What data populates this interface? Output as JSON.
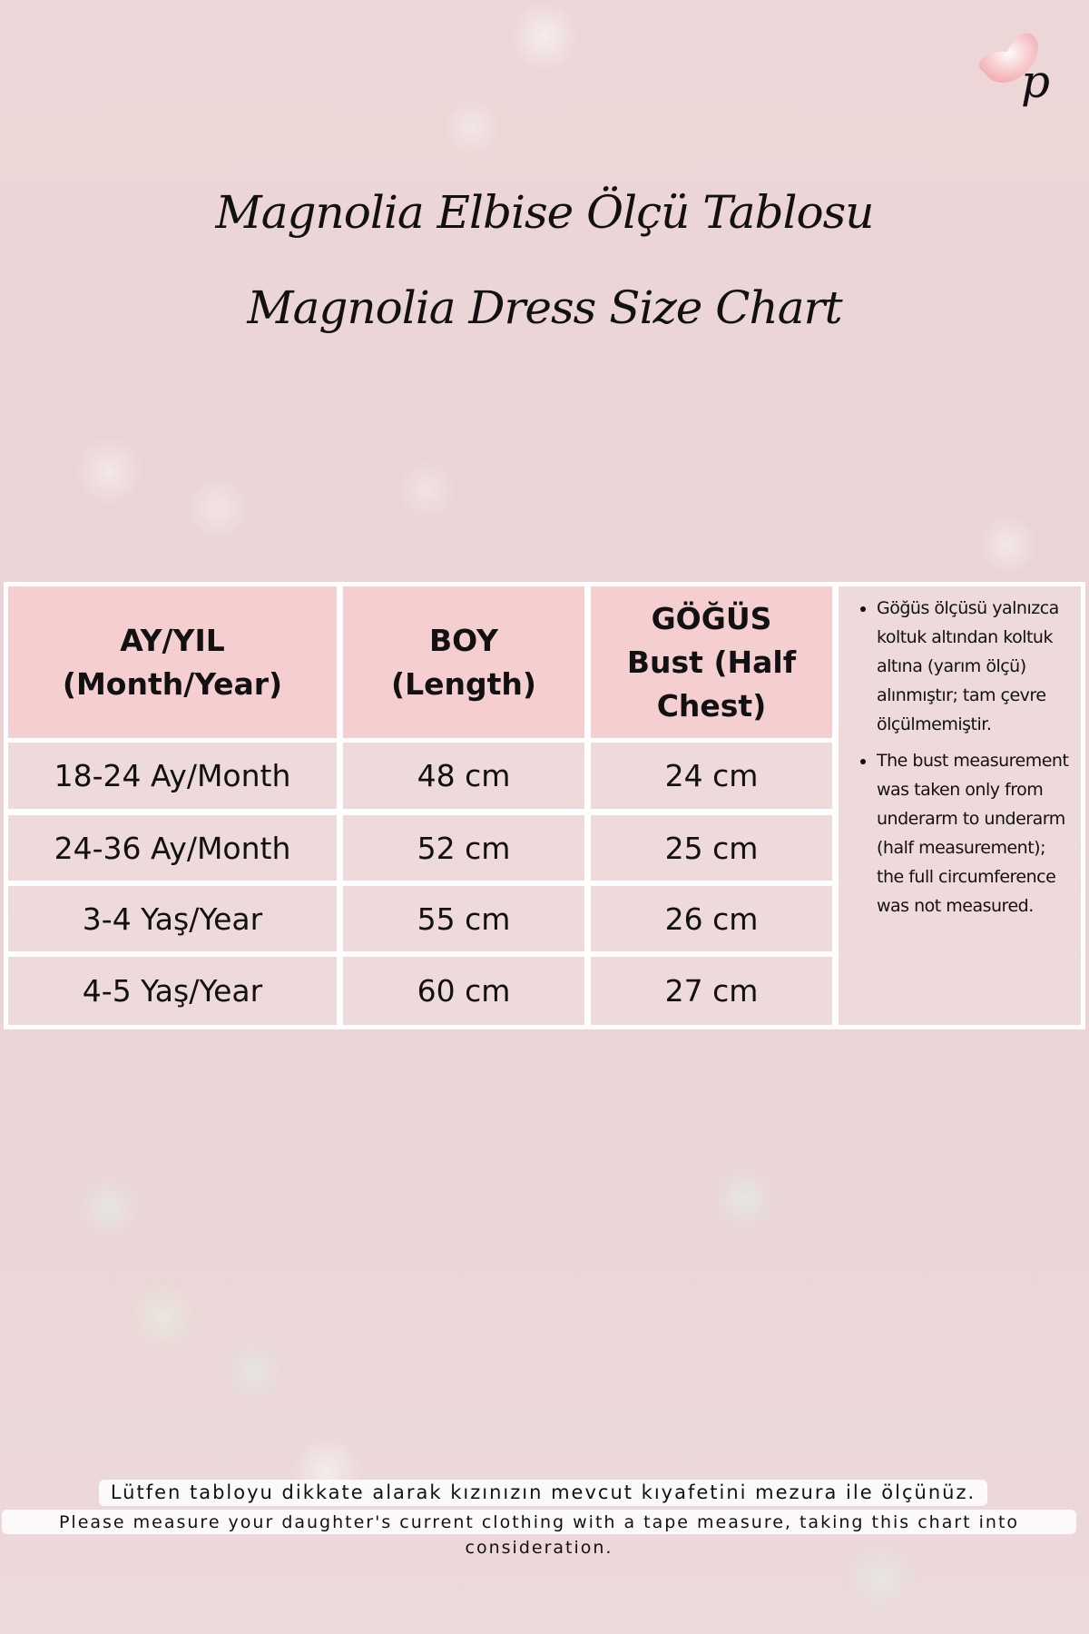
{
  "brand": {
    "logo_letter": "p",
    "logo_icon": "butterfly-icon"
  },
  "title": {
    "line1": "Magnolia Elbise Ölçü Tablosu",
    "line2": "Magnolia Dress Size Chart"
  },
  "table": {
    "headers": [
      {
        "line1": "AY/YIL",
        "line2": "(Month/Year)"
      },
      {
        "line1": "BOY",
        "line2": "(Length)"
      },
      {
        "line1": "GÖĞÜS",
        "line2": "Bust (Half",
        "line3": "Chest)"
      }
    ],
    "rows": [
      [
        "18-24 Ay/Month",
        "48 cm",
        "24 cm"
      ],
      [
        "24-36 Ay/Month",
        "52 cm",
        "25 cm"
      ],
      [
        "3-4 Yaş/Year",
        "55 cm",
        "26 cm"
      ],
      [
        "4-5 Yaş/Year",
        "60 cm",
        "27 cm"
      ]
    ],
    "notes": [
      "Göğüs ölçüsü yalnızca koltuk altından koltuk altına (yarım ölçü) alınmıştır; tam çevre ölçülmemiştir.",
      "The bust measurement was taken only from underarm to underarm (half measurement); the full circumference was not measured."
    ]
  },
  "footer": {
    "tr": "Lütfen tabloyu dikkate alarak kızınızın mevcut kıyafetini mezura ile ölçünüz.",
    "en": "Please measure your daughter's current clothing with a tape measure, taking this chart into consideration."
  },
  "colors": {
    "header_cell": "#f5cfd0",
    "body_cell": "#eedadb",
    "background": "#ecd6d7"
  }
}
